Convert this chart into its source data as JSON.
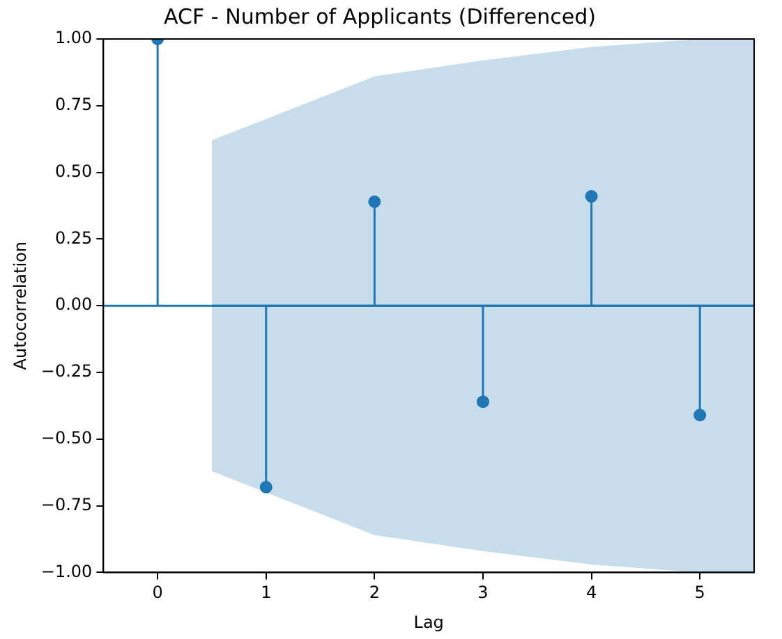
{
  "chart_data": {
    "type": "lollipop",
    "title": "ACF - Number of Applicants (Differenced)",
    "xlabel": "Lag",
    "ylabel": "Autocorrelation",
    "x": [
      0,
      1,
      2,
      3,
      4,
      5
    ],
    "series": [
      {
        "color": "#1f77b4",
        "values": [
          1.0,
          -0.68,
          0.39,
          -0.36,
          0.41,
          -0.41
        ]
      },
      {
        "type": "line",
        "marker": "none",
        "color": "#1f77b4",
        "x": [
          0.5,
          1,
          2,
          3,
          4,
          5,
          5.5
        ],
        "values": [
          0,
          0,
          0,
          0,
          0,
          0,
          0
        ],
        "lower": [
          -0.62,
          -0.7,
          -0.86,
          -0.92,
          -0.97,
          -1.0,
          -1.0
        ],
        "upper": [
          0.62,
          0.7,
          0.86,
          0.92,
          0.97,
          1.0,
          1.0
        ]
      }
    ],
    "ref_lines": [
      {
        "axis": "y",
        "value": 0,
        "color": "#1f77b4"
      }
    ],
    "marker": "circle",
    "grid": false,
    "legend": false,
    "xlim": [
      -0.5,
      5.5
    ],
    "xticks": [
      0,
      1,
      2,
      3,
      4,
      5
    ],
    "ylim": [
      -1,
      1
    ],
    "yticks": [
      {
        "value": -1,
        "label": "−1.00"
      },
      {
        "value": -0.75,
        "label": "−0.75"
      },
      {
        "value": -0.5,
        "label": "−0.50"
      },
      {
        "value": -0.25,
        "label": "−0.25"
      },
      {
        "value": 0,
        "label": "0.00"
      },
      {
        "value": 0.25,
        "label": "0.25"
      },
      {
        "value": 0.5,
        "label": "0.50"
      },
      {
        "value": 0.75,
        "label": "0.75"
      },
      {
        "value": 1,
        "label": "1.00"
      }
    ]
  }
}
